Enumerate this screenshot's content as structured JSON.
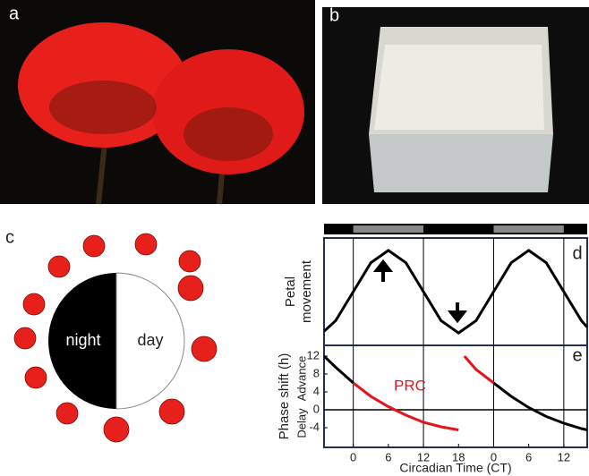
{
  "panel_labels": [
    "a",
    "b",
    "c",
    "d",
    "e"
  ],
  "clock": {
    "night": "night",
    "day": "day"
  },
  "chart_data": [
    {
      "type": "line",
      "ylabel": [
        "Petal",
        "movement"
      ],
      "color": "#000000",
      "x": [
        -5,
        -3,
        0,
        3,
        6,
        9,
        12,
        15,
        18,
        21,
        24,
        27,
        30,
        33,
        36,
        39,
        40
      ],
      "values": [
        0.02,
        0.15,
        0.5,
        0.85,
        1,
        0.85,
        0.5,
        0.15,
        0,
        0.15,
        0.5,
        0.85,
        1,
        0.85,
        0.5,
        0.15,
        0.07
      ],
      "xlim": [
        -5,
        40
      ],
      "ylim": [
        -0.15,
        1.15
      ],
      "subjective_day": [
        [
          0,
          12
        ],
        [
          24,
          36
        ]
      ]
    },
    {
      "type": "line",
      "ylabel": "Phase shift (h)",
      "ylabel_parts": [
        "Delay",
        "Advance"
      ],
      "xlabel": "Circadian Time (CT)",
      "x": [
        -5,
        -3,
        0,
        3,
        6,
        9,
        12,
        15,
        18,
        18.5,
        19,
        21,
        24,
        27,
        30,
        33,
        36,
        39,
        40
      ],
      "series": [
        {
          "color": "#000000",
          "values": [
            12,
            9.5,
            6,
            null,
            null,
            null,
            null,
            null,
            null,
            null,
            null,
            null,
            6,
            3,
            0.5,
            -1.5,
            -3,
            -4.2,
            -4.5
          ]
        },
        {
          "name": "PRC",
          "color": "#e8121a",
          "values": [
            null,
            null,
            6,
            3,
            0.7,
            -1.2,
            -2.8,
            -3.8,
            -4.5,
            null,
            12,
            9,
            6,
            null,
            null,
            null,
            null,
            null,
            null
          ]
        },
        {
          "color": "#e8121a",
          "dashed": true,
          "values": [
            null,
            null,
            null,
            null,
            null,
            null,
            null,
            null,
            -4.5,
            null,
            12,
            null,
            null,
            null,
            null,
            null,
            null,
            null,
            null
          ]
        }
      ],
      "xlim": [
        -5,
        40
      ],
      "ylim": [
        -8.4,
        14.4
      ],
      "xticks": [
        0,
        6,
        12,
        18,
        {
          "value": 24,
          "label": "0"
        },
        {
          "value": 30,
          "label": "6"
        },
        {
          "value": 36,
          "label": "12"
        }
      ],
      "yticks": [
        -4,
        0,
        4,
        8,
        12
      ],
      "subjective_day": [
        [
          0,
          12
        ],
        [
          24,
          36
        ]
      ]
    }
  ]
}
